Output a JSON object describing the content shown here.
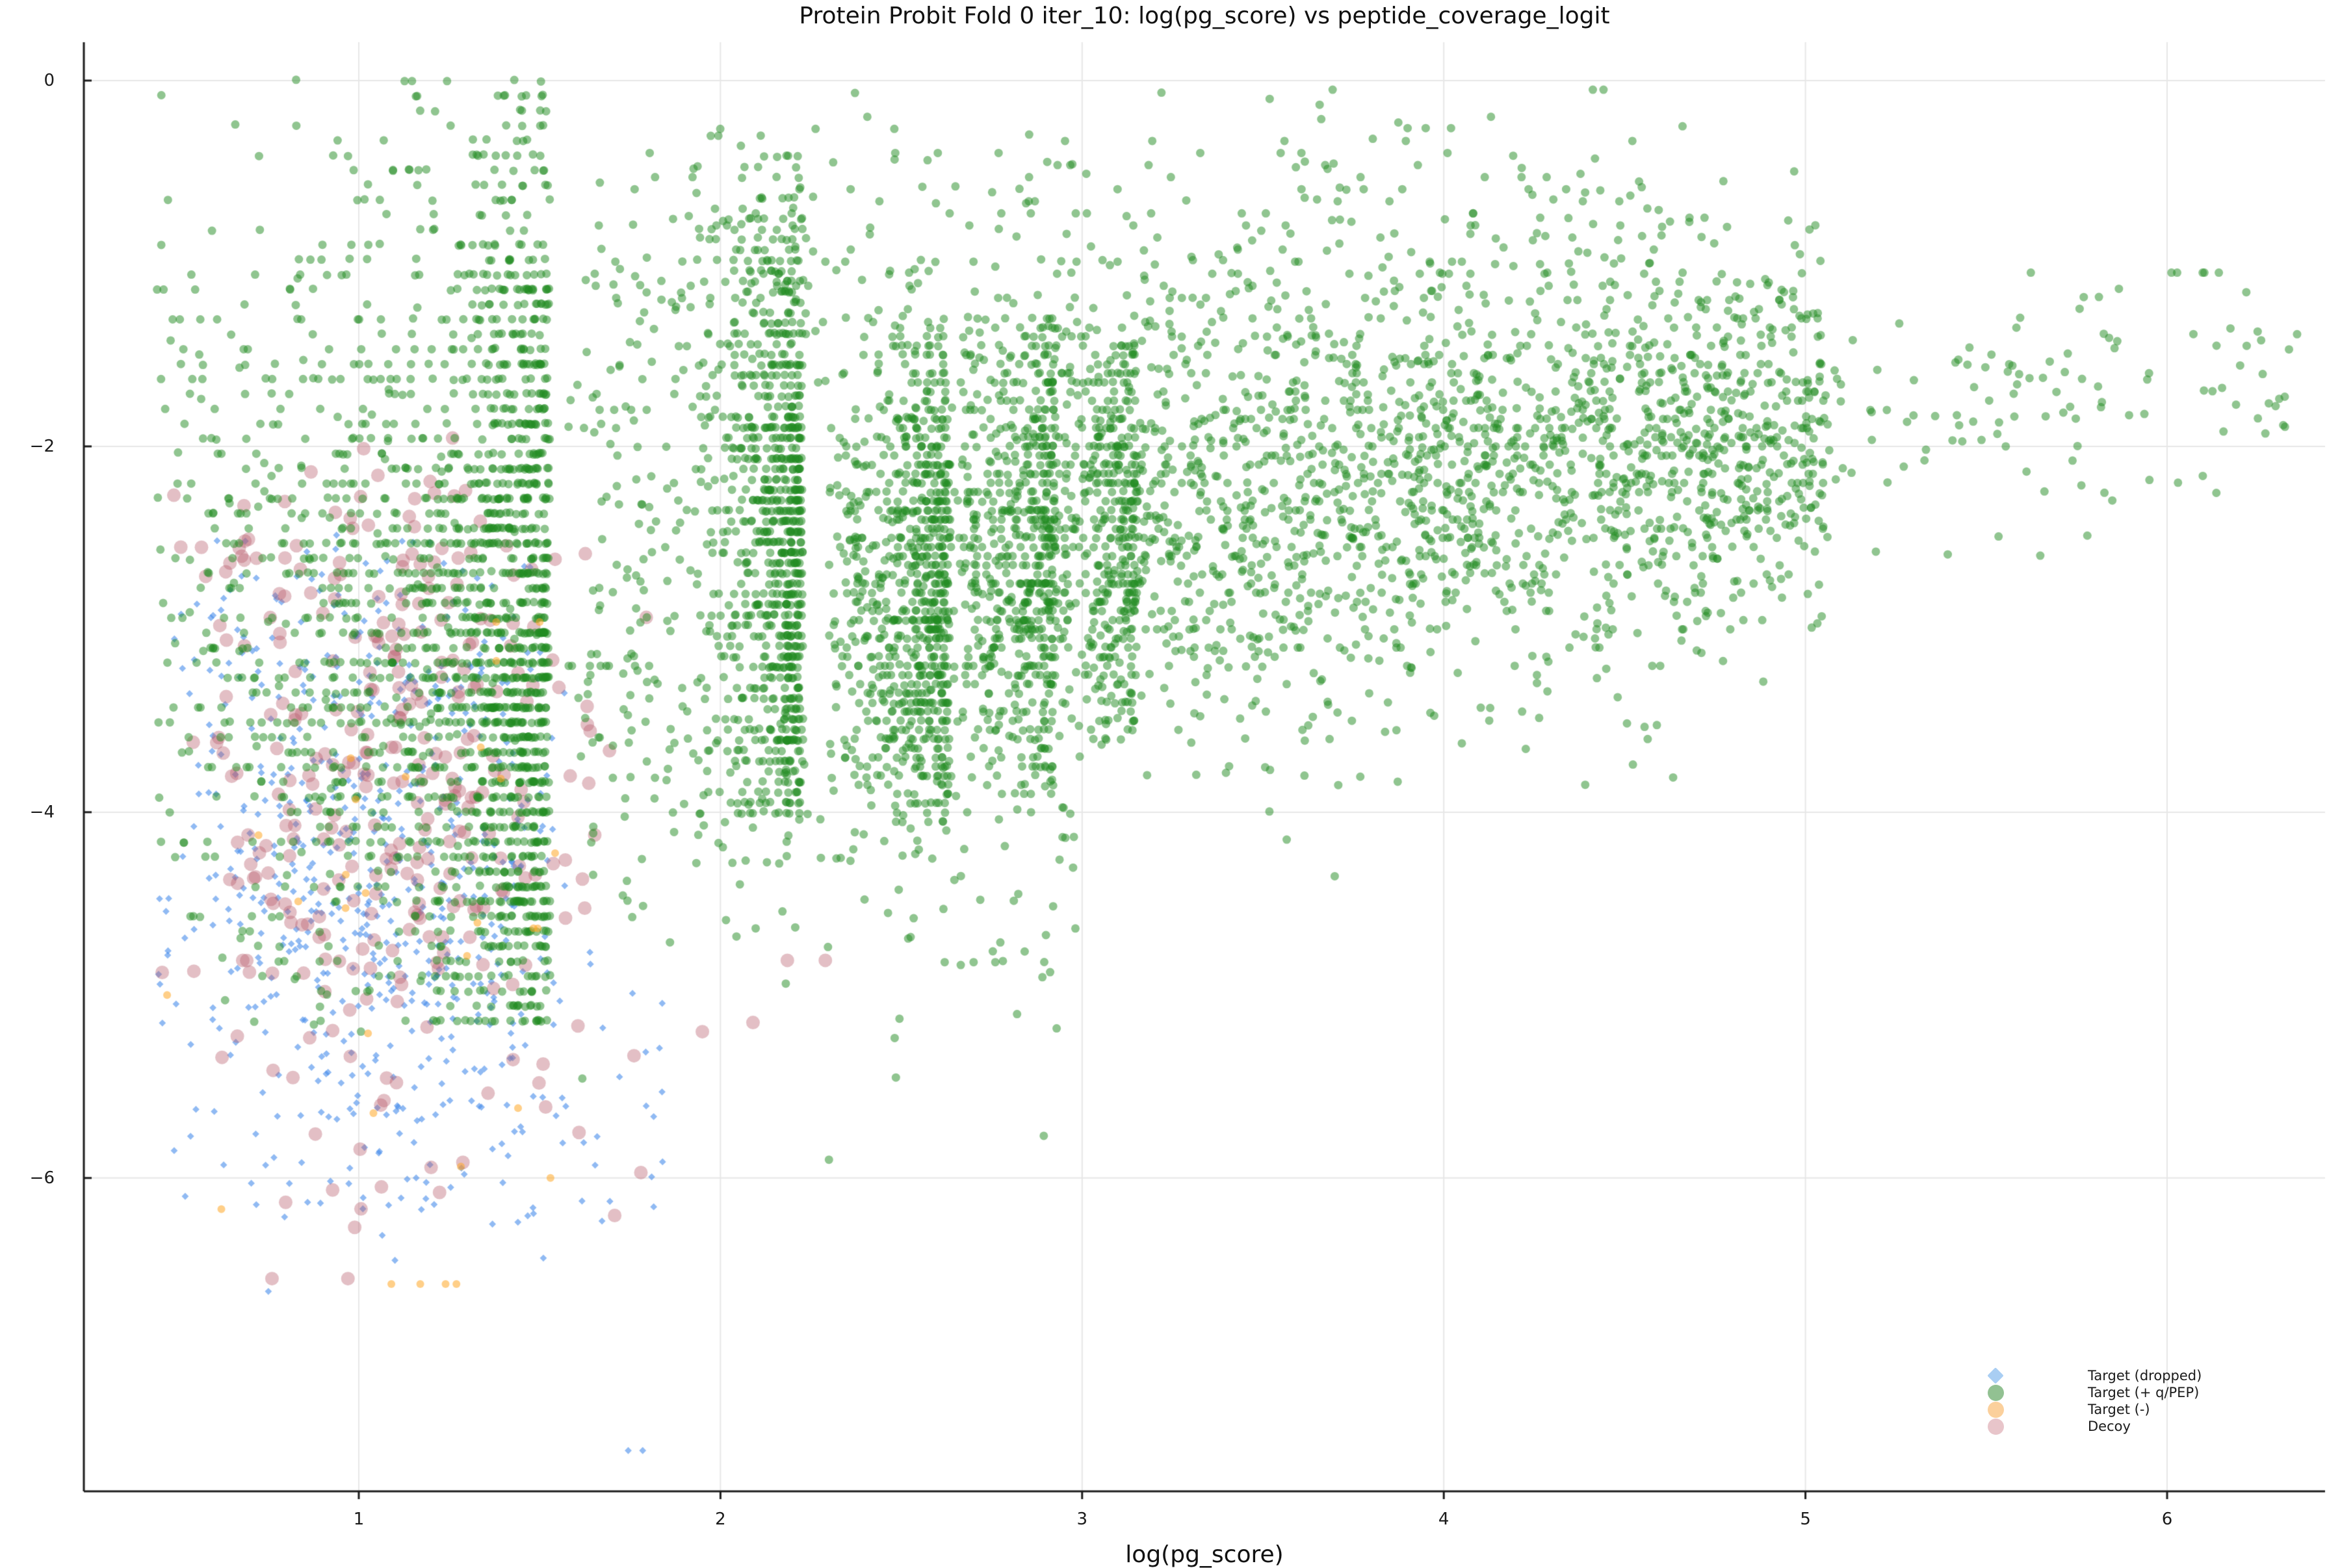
{
  "chart_data": {
    "type": "scatter",
    "title": "Protein Probit Fold 0 iter_10: log(pg_score) vs peptide_coverage_logit",
    "xlabel": "log(pg_score)",
    "ylabel": "",
    "xlim": [
      0.2398,
      6.4367
    ],
    "ylim": [
      -7.713,
      0.2096
    ],
    "xticks": {
      "values": [
        1,
        2,
        3,
        4,
        5,
        6
      ],
      "labels": [
        "1",
        "2",
        "3",
        "4",
        "5",
        "6"
      ]
    },
    "yticks": {
      "values": [
        0,
        -2,
        -4,
        -6
      ],
      "labels": [
        "0",
        "−2",
        "−4",
        "−6"
      ]
    },
    "grid": true,
    "grid_color": "#e7e7e7",
    "axis_color": "#1c1c1c",
    "text_color": "#1a1a1a",
    "legend": {
      "position": "lower right",
      "entries": [
        {
          "label": "Target (dropped)",
          "marker": "diamond",
          "swatch_color": "#a9cef3"
        },
        {
          "label": "Target (+ q/PEP)",
          "marker": "circle",
          "swatch_color": "#92c192"
        },
        {
          "label": "Target (-)",
          "marker": "circle",
          "swatch_color": "#fbd09c"
        },
        {
          "label": "Decoy",
          "marker": "circle",
          "swatch_color": "#e8c5ca"
        }
      ]
    },
    "series": [
      {
        "name": "Target (dropped)",
        "marker": "diamond",
        "fill": "rgba(70,140,235,0.60)",
        "size": 5.4,
        "seed": 7,
        "clusters": [
          {
            "kind": "gauss",
            "count": 460,
            "mx": 1.05,
            "sx": 0.3,
            "my": -4.25,
            "sy": 0.85,
            "clip": [
              0.44,
              1.57,
              -6.4,
              -2.5
            ]
          },
          {
            "kind": "gauss",
            "count": 120,
            "mx": 1.25,
            "sx": 0.33,
            "my": -5.35,
            "sy": 0.55,
            "clip": [
              0.44,
              1.86,
              -6.5,
              -4.2
            ]
          },
          {
            "kind": "gauss",
            "count": 70,
            "mx": 1.0,
            "sx": 0.28,
            "my": -3.0,
            "sy": 0.32,
            "clip": [
              0.44,
              1.6,
              -3.6,
              -2.4
            ]
          }
        ],
        "points": [
          [
            1.745,
            -7.49
          ],
          [
            1.785,
            -7.49
          ],
          [
            0.75,
            -6.62
          ],
          [
            0.52,
            -6.1
          ],
          [
            1.1,
            -6.45
          ]
        ]
      },
      {
        "name": "Decoy",
        "marker": "circle",
        "fill": "rgba(185,95,110,0.40)",
        "size": 10.5,
        "seed": 13,
        "clusters": [
          {
            "kind": "gauss",
            "count": 250,
            "mx": 1.02,
            "sx": 0.33,
            "my": -3.95,
            "sy": 0.75,
            "clip": [
              0.44,
              1.85,
              -5.5,
              -2.3
            ]
          },
          {
            "kind": "gauss",
            "count": 55,
            "mx": 0.95,
            "sx": 0.3,
            "my": -2.6,
            "sy": 0.35,
            "clip": [
              0.44,
              1.7,
              -3.1,
              -1.9
            ]
          },
          {
            "kind": "gauss",
            "count": 22,
            "mx": 1.15,
            "sx": 0.35,
            "my": -5.85,
            "sy": 0.3,
            "clip": [
              0.5,
              1.85,
              -6.4,
              -5.3
            ]
          }
        ],
        "points": [
          [
            2.185,
            -4.81
          ],
          [
            2.29,
            -4.81
          ],
          [
            2.09,
            -5.15
          ],
          [
            0.76,
            -6.55
          ],
          [
            0.97,
            -6.55
          ],
          [
            1.78,
            -5.97
          ],
          [
            1.95,
            -5.2
          ]
        ]
      },
      {
        "name": "Target (+ q/PEP)",
        "marker": "circle",
        "fill": "rgba(34,139,34,0.50)",
        "size": 6.5,
        "seed": 42,
        "clusters": [
          {
            "kind": "rows",
            "count": 1500,
            "xEdge": 1.525,
            "xScale": 0.16,
            "xMin": 0.44,
            "yTop": 0,
            "yBottom": -5.15,
            "dy": 0.0816,
            "mu": -3.3,
            "sig": 1.35,
            "floor": 0.12,
            "spread": 0.3,
            "jx": 0.012,
            "jy": 0.01
          },
          {
            "kind": "rows",
            "count": 850,
            "xEdge": 2.225,
            "xScale": 0.09,
            "xMin": 1.93,
            "yTop": -0.3,
            "yBottom": -4.0,
            "dy": 0.057,
            "mu": -2.55,
            "sig": 1.0,
            "floor": 0.15,
            "spread": 0.15,
            "jx": 0.01,
            "jy": 0.008
          },
          {
            "kind": "rows",
            "count": 520,
            "xEdge": 2.63,
            "xScale": 0.08,
            "xMin": 2.34,
            "yTop": -1.25,
            "yBottom": -4.05,
            "dy": 0.05,
            "mu": -2.7,
            "sig": 0.85,
            "floor": 0.15,
            "spread": 0.12,
            "jx": 0.01,
            "jy": 0.008
          },
          {
            "kind": "rows",
            "count": 380,
            "xEdge": 2.925,
            "xScale": 0.08,
            "xMin": 2.67,
            "yTop": -1.3,
            "yBottom": -3.9,
            "dy": 0.05,
            "mu": -2.55,
            "sig": 0.8,
            "floor": 0.15,
            "spread": 0.12,
            "jx": 0.01,
            "jy": 0.008
          },
          {
            "kind": "rows",
            "count": 240,
            "xEdge": 3.15,
            "xScale": 0.07,
            "xMin": 2.95,
            "yTop": -1.35,
            "yBottom": -3.6,
            "dy": 0.05,
            "mu": -2.4,
            "sig": 0.8,
            "floor": 0.15,
            "spread": 0.12,
            "jx": 0.01,
            "jy": 0.008
          },
          {
            "kind": "band",
            "count": 2500,
            "x0": 2.3,
            "x1": 5.05,
            "pow": 0.95,
            "yA": -2.75,
            "yB": -1.85,
            "sy": 0.6,
            "quant": 0.3,
            "dy": 0.05,
            "clipY": [
              -4.6,
              -0.25
            ]
          },
          {
            "kind": "band",
            "count": 320,
            "x0": 1.62,
            "x1": 4.6,
            "pow": 1.0,
            "yA": -1.0,
            "yB": -0.8,
            "sy": 0.45,
            "quant": 0.5,
            "dy": 0.066,
            "clipY": [
              -1.8,
              -0.05
            ]
          },
          {
            "kind": "band",
            "count": 130,
            "x0": 5.0,
            "x1": 6.38,
            "pow": 1.25,
            "yA": -1.9,
            "yB": -1.55,
            "sy": 0.33,
            "quant": 0,
            "dy": 0.05,
            "clipY": [
              -2.9,
              -1.05
            ]
          },
          {
            "kind": "band",
            "count": 170,
            "x0": 1.58,
            "x1": 3.0,
            "pow": 1.1,
            "yA": -3.6,
            "yB": -4.4,
            "sy": 0.55,
            "quant": 0,
            "dy": 0.05,
            "clipY": [
              -5.95,
              -3.2
            ]
          },
          {
            "kind": "gauss",
            "count": 110,
            "mx": 1.78,
            "sx": 0.13,
            "my": -2.5,
            "sy": 0.85,
            "clip": [
              1.57,
              2.05,
              -4.6,
              -0.9
            ]
          },
          {
            "kind": "gauss",
            "count": 420,
            "mx": 0.95,
            "sx": 0.32,
            "my": -2.9,
            "sy": 1.1,
            "clip": [
              0.44,
              1.5,
              -5.2,
              -0.5
            ],
            "qdy": 0.0816,
            "q": 0.75
          }
        ],
        "points": [
          [
            6.22,
            -1.45
          ],
          [
            6.26,
            -1.42
          ],
          [
            6.3,
            -1.78
          ],
          [
            6.31,
            -1.74
          ],
          [
            5.95,
            -1.6
          ],
          [
            3.9,
            -0.26
          ],
          [
            3.95,
            -0.26
          ],
          [
            4.02,
            -0.26
          ],
          [
            2.62,
            -4.82
          ],
          [
            2.7,
            -4.82
          ],
          [
            2.76,
            -4.82
          ],
          [
            2.3,
            -5.9
          ]
        ]
      },
      {
        "name": "Target (-)",
        "marker": "circle",
        "fill": "rgba(255,167,38,0.55)",
        "size": 6,
        "seed": 5,
        "clusters": [
          {
            "kind": "gauss",
            "count": 20,
            "mx": 1.0,
            "sx": 0.33,
            "my": -4.4,
            "sy": 1.0,
            "clip": [
              0.45,
              1.62,
              -6.3,
              -2.7
            ]
          }
        ],
        "points": [
          [
            1.09,
            -6.58
          ],
          [
            1.17,
            -6.58
          ],
          [
            1.24,
            -6.58
          ],
          [
            1.27,
            -6.58
          ],
          [
            0.62,
            -6.17
          ],
          [
            1.53,
            -6.0
          ],
          [
            1.38,
            -2.96
          ],
          [
            1.5,
            -2.96
          ],
          [
            0.47,
            -5.0
          ]
        ]
      }
    ]
  }
}
